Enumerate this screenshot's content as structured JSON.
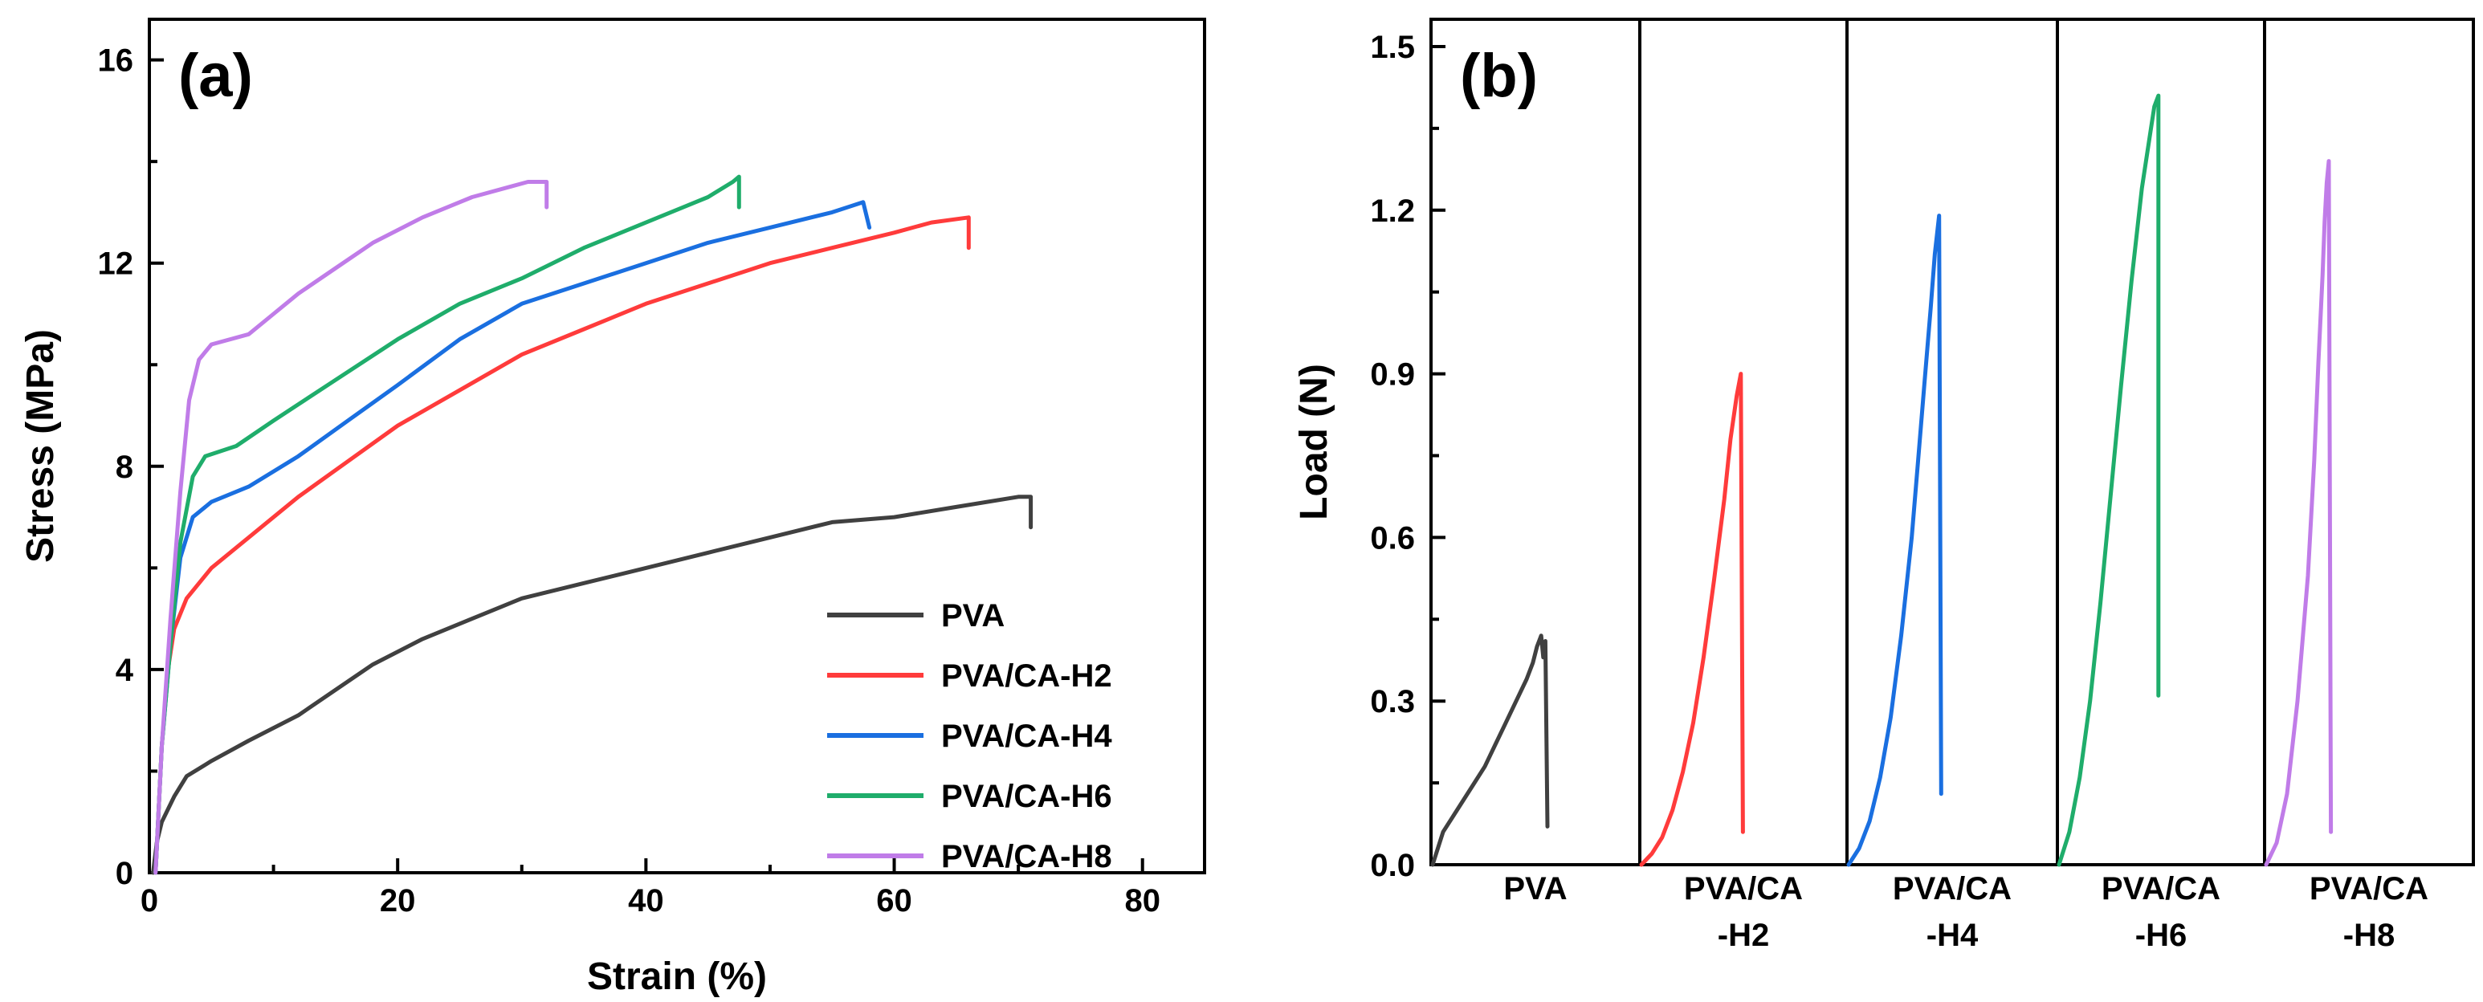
{
  "chart_data": [
    {
      "type": "line",
      "panel": "(a)",
      "xlabel": "Strain (%)",
      "ylabel": "Stress (MPa)",
      "xlim": [
        0,
        85
      ],
      "ylim": [
        0,
        16.8
      ],
      "xticks": [
        0,
        20,
        40,
        60,
        80
      ],
      "yticks": [
        0,
        4,
        8,
        12,
        16
      ],
      "legend_position": "bottom-right",
      "series": [
        {
          "name": "PVA",
          "color": "#404040",
          "points": [
            [
              0.3,
              0
            ],
            [
              0.6,
              0.6
            ],
            [
              1,
              1.0
            ],
            [
              2,
              1.5
            ],
            [
              3,
              1.9
            ],
            [
              5,
              2.2
            ],
            [
              8,
              2.6
            ],
            [
              12,
              3.1
            ],
            [
              15,
              3.6
            ],
            [
              18,
              4.1
            ],
            [
              22,
              4.6
            ],
            [
              26,
              5.0
            ],
            [
              30,
              5.4
            ],
            [
              35,
              5.7
            ],
            [
              40,
              6.0
            ],
            [
              45,
              6.3
            ],
            [
              50,
              6.6
            ],
            [
              55,
              6.9
            ],
            [
              60,
              7.0
            ],
            [
              65,
              7.2
            ],
            [
              70,
              7.4
            ],
            [
              71,
              7.4
            ],
            [
              71,
              6.8
            ]
          ]
        },
        {
          "name": "PVA/CA-H2",
          "color": "#ff3b3b",
          "points": [
            [
              0.5,
              0
            ],
            [
              1,
              2.5
            ],
            [
              1.5,
              4.0
            ],
            [
              2,
              4.8
            ],
            [
              3,
              5.4
            ],
            [
              5,
              6.0
            ],
            [
              8,
              6.6
            ],
            [
              12,
              7.4
            ],
            [
              16,
              8.1
            ],
            [
              20,
              8.8
            ],
            [
              25,
              9.5
            ],
            [
              30,
              10.2
            ],
            [
              35,
              10.7
            ],
            [
              40,
              11.2
            ],
            [
              45,
              11.6
            ],
            [
              50,
              12.0
            ],
            [
              55,
              12.3
            ],
            [
              60,
              12.6
            ],
            [
              63,
              12.8
            ],
            [
              66,
              12.9
            ],
            [
              66,
              12.3
            ]
          ]
        },
        {
          "name": "PVA/CA-H4",
          "color": "#1a6fe0",
          "points": [
            [
              0.5,
              0
            ],
            [
              1,
              2.5
            ],
            [
              1.7,
              4.5
            ],
            [
              2.5,
              6.2
            ],
            [
              3.5,
              7.0
            ],
            [
              5,
              7.3
            ],
            [
              8,
              7.6
            ],
            [
              12,
              8.2
            ],
            [
              16,
              8.9
            ],
            [
              20,
              9.6
            ],
            [
              25,
              10.5
            ],
            [
              30,
              11.2
            ],
            [
              35,
              11.6
            ],
            [
              40,
              12.0
            ],
            [
              45,
              12.4
            ],
            [
              50,
              12.7
            ],
            [
              55,
              13.0
            ],
            [
              57.5,
              13.2
            ],
            [
              58,
              12.7
            ]
          ]
        },
        {
          "name": "PVA/CA-H6",
          "color": "#1fad6b",
          "points": [
            [
              0.5,
              0
            ],
            [
              1,
              2.5
            ],
            [
              1.7,
              4.5
            ],
            [
              2.5,
              6.5
            ],
            [
              3.5,
              7.8
            ],
            [
              4.5,
              8.2
            ],
            [
              7,
              8.4
            ],
            [
              10,
              8.9
            ],
            [
              15,
              9.7
            ],
            [
              20,
              10.5
            ],
            [
              25,
              11.2
            ],
            [
              30,
              11.7
            ],
            [
              35,
              12.3
            ],
            [
              40,
              12.8
            ],
            [
              45,
              13.3
            ],
            [
              47,
              13.6
            ],
            [
              47.5,
              13.7
            ],
            [
              47.5,
              13.1
            ]
          ]
        },
        {
          "name": "PVA/CA-H8",
          "color": "#c07ce8",
          "points": [
            [
              0.5,
              0
            ],
            [
              1,
              2.5
            ],
            [
              1.7,
              5.0
            ],
            [
              2.5,
              7.5
            ],
            [
              3.2,
              9.3
            ],
            [
              4,
              10.1
            ],
            [
              5,
              10.4
            ],
            [
              8,
              10.6
            ],
            [
              10,
              11.0
            ],
            [
              12,
              11.4
            ],
            [
              15,
              11.9
            ],
            [
              18,
              12.4
            ],
            [
              22,
              12.9
            ],
            [
              26,
              13.3
            ],
            [
              29,
              13.5
            ],
            [
              30.5,
              13.6
            ],
            [
              32,
              13.6
            ],
            [
              32,
              13.1
            ]
          ]
        }
      ]
    },
    {
      "type": "line",
      "panel": "(b)",
      "ylabel": "Load (N)",
      "ylim": [
        0,
        1.55
      ],
      "yticks": [
        0.0,
        0.3,
        0.6,
        0.9,
        1.2,
        1.5
      ],
      "ytick_labels": [
        "0.0",
        "0.3",
        "0.6",
        "0.9",
        "1.2",
        "1.5"
      ],
      "categories": [
        "PVA",
        "PVA/CA\n-H2",
        "PVA/CA\n-H4",
        "PVA/CA\n-H6",
        "PVA/CA\n-H8"
      ],
      "series": [
        {
          "name": "PVA",
          "color": "#404040",
          "points": [
            [
              0.0,
              0
            ],
            [
              0.05,
              0.06
            ],
            [
              0.1,
              0.09
            ],
            [
              0.15,
              0.12
            ],
            [
              0.2,
              0.15
            ],
            [
              0.25,
              0.18
            ],
            [
              0.3,
              0.22
            ],
            [
              0.35,
              0.26
            ],
            [
              0.4,
              0.3
            ],
            [
              0.45,
              0.34
            ],
            [
              0.48,
              0.37
            ],
            [
              0.5,
              0.4
            ],
            [
              0.52,
              0.42
            ],
            [
              0.53,
              0.38
            ],
            [
              0.54,
              0.41
            ],
            [
              0.55,
              0.07
            ]
          ]
        },
        {
          "name": "PVA/CA-H2",
          "color": "#ff3b3b",
          "points": [
            [
              0.0,
              0
            ],
            [
              0.05,
              0.02
            ],
            [
              0.1,
              0.05
            ],
            [
              0.15,
              0.1
            ],
            [
              0.2,
              0.17
            ],
            [
              0.25,
              0.26
            ],
            [
              0.3,
              0.38
            ],
            [
              0.35,
              0.52
            ],
            [
              0.4,
              0.67
            ],
            [
              0.43,
              0.78
            ],
            [
              0.46,
              0.86
            ],
            [
              0.48,
              0.9
            ],
            [
              0.49,
              0.06
            ]
          ]
        },
        {
          "name": "PVA/CA-H4",
          "color": "#1a6fe0",
          "points": [
            [
              0.0,
              0
            ],
            [
              0.05,
              0.03
            ],
            [
              0.1,
              0.08
            ],
            [
              0.15,
              0.16
            ],
            [
              0.2,
              0.27
            ],
            [
              0.25,
              0.42
            ],
            [
              0.3,
              0.6
            ],
            [
              0.33,
              0.74
            ],
            [
              0.36,
              0.88
            ],
            [
              0.39,
              1.02
            ],
            [
              0.41,
              1.12
            ],
            [
              0.43,
              1.19
            ],
            [
              0.44,
              0.13
            ]
          ]
        },
        {
          "name": "PVA/CA-H6",
          "color": "#1fad6b",
          "points": [
            [
              0.0,
              0
            ],
            [
              0.05,
              0.06
            ],
            [
              0.1,
              0.16
            ],
            [
              0.15,
              0.3
            ],
            [
              0.2,
              0.48
            ],
            [
              0.25,
              0.68
            ],
            [
              0.3,
              0.88
            ],
            [
              0.35,
              1.07
            ],
            [
              0.4,
              1.24
            ],
            [
              0.44,
              1.34
            ],
            [
              0.46,
              1.39
            ],
            [
              0.48,
              1.41
            ],
            [
              0.48,
              0.31
            ]
          ]
        },
        {
          "name": "PVA/CA-H8",
          "color": "#c07ce8",
          "points": [
            [
              0.0,
              0
            ],
            [
              0.05,
              0.04
            ],
            [
              0.1,
              0.13
            ],
            [
              0.15,
              0.3
            ],
            [
              0.2,
              0.53
            ],
            [
              0.23,
              0.74
            ],
            [
              0.25,
              0.92
            ],
            [
              0.27,
              1.08
            ],
            [
              0.28,
              1.18
            ],
            [
              0.29,
              1.25
            ],
            [
              0.3,
              1.29
            ],
            [
              0.31,
              0.06
            ]
          ]
        }
      ]
    }
  ]
}
